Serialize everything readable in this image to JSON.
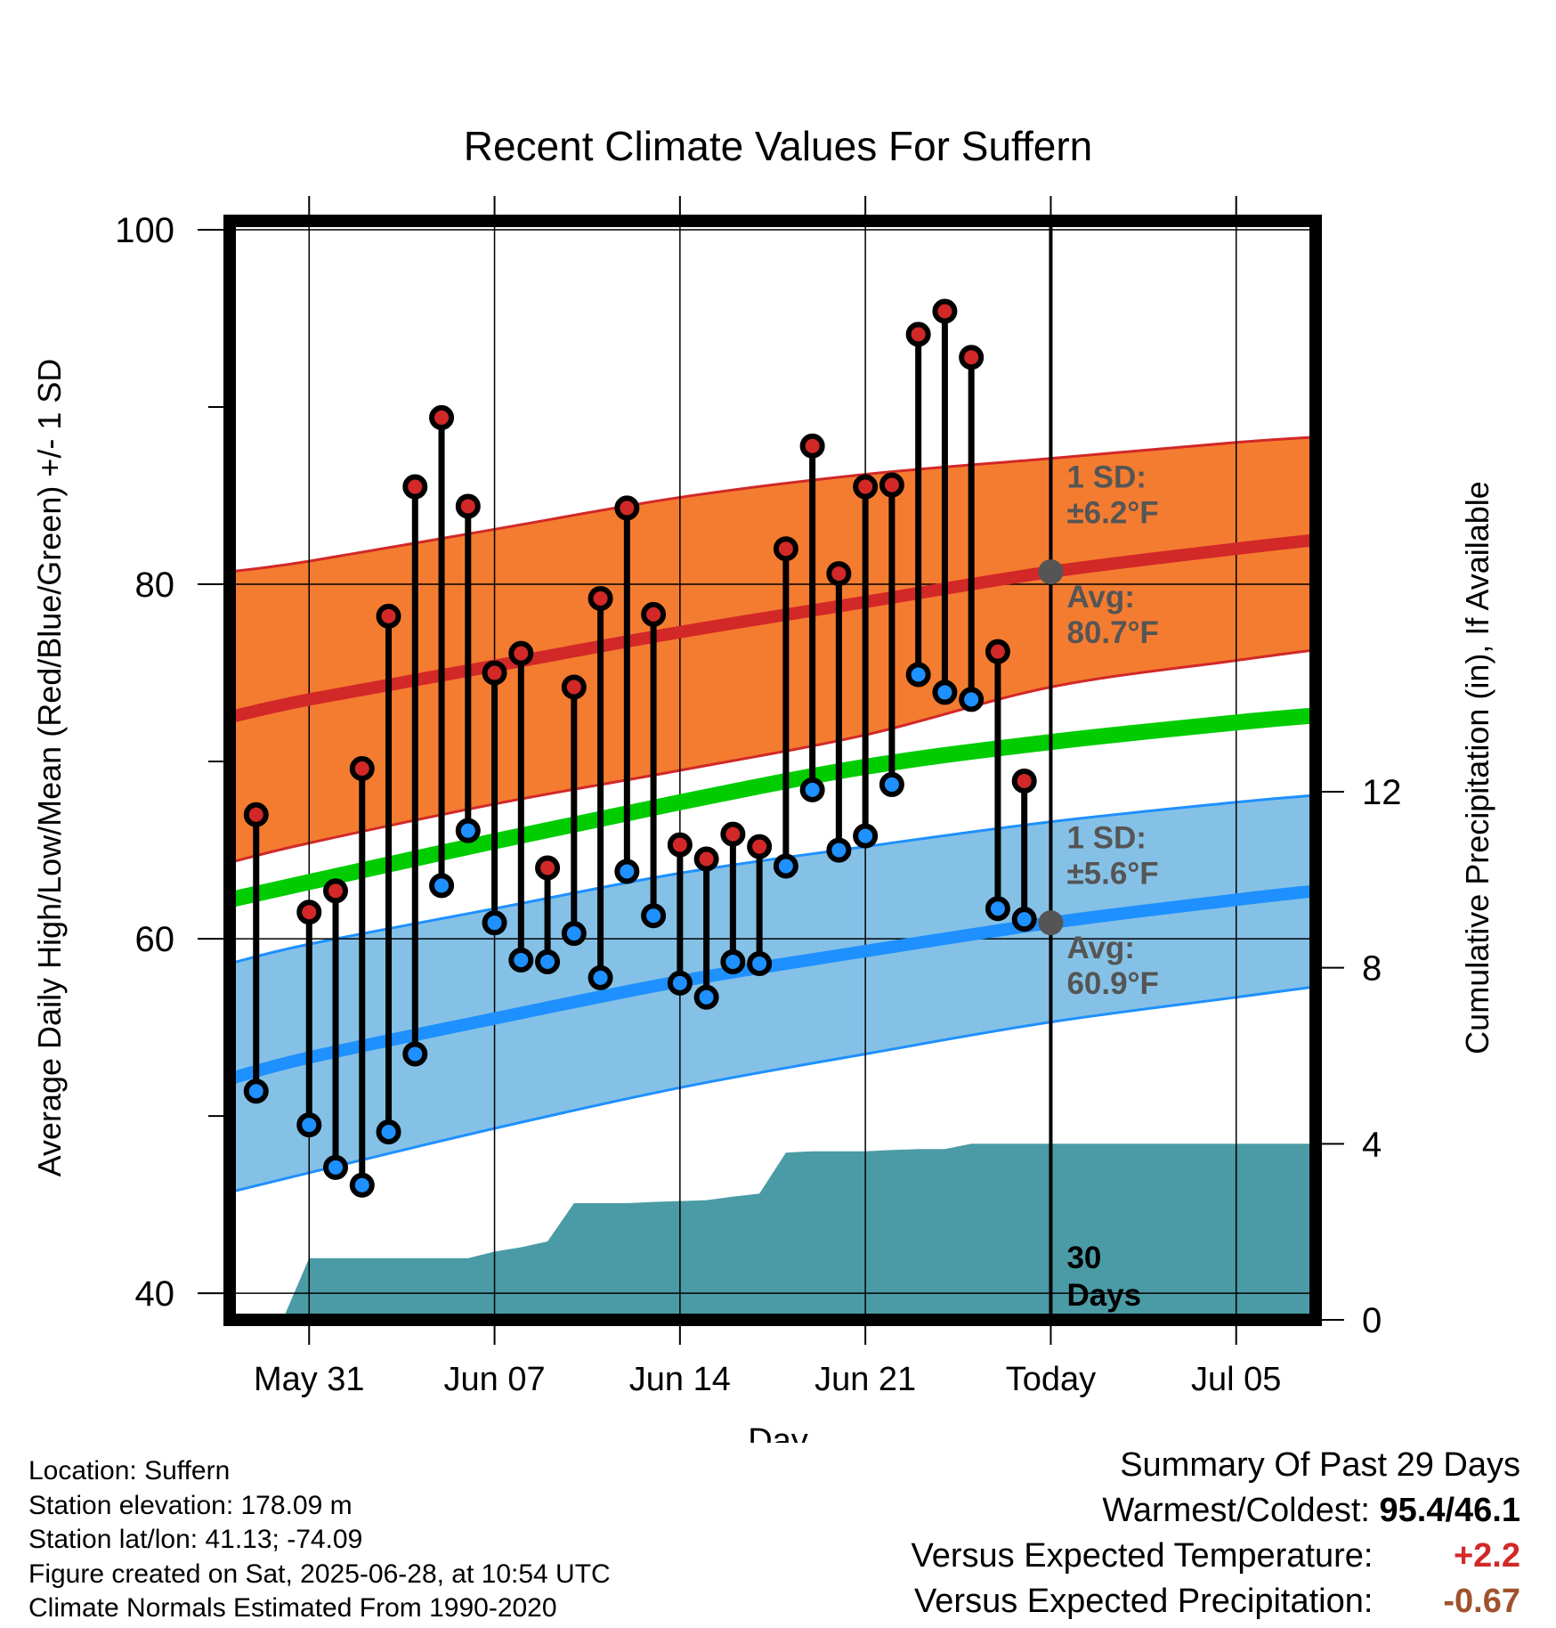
{
  "chart_data": {
    "type": "line",
    "title": "Recent Climate Values For Suffern",
    "xlabel": "Day",
    "ylabel": "Average Daily High/Low/Mean (Red/Blue/Green) +/- 1 SD",
    "ylabel_right": "Cumulative Precipitation (in), If Available",
    "ylim": [
      38.5,
      100.5
    ],
    "yticks": [
      40,
      60,
      80,
      100
    ],
    "ylim_right": [
      0,
      12
    ],
    "yticks_right": [
      0,
      4,
      8,
      12
    ],
    "xlim": [
      -3.0,
      38.0
    ],
    "xticks": [
      {
        "day": 0,
        "label": "May 31"
      },
      {
        "day": 7,
        "label": "Jun 07"
      },
      {
        "day": 14,
        "label": "Jun 14"
      },
      {
        "day": 21,
        "label": "Jun 21"
      },
      {
        "day": 28,
        "label": "Today"
      },
      {
        "day": 35,
        "label": "Jul 05"
      }
    ],
    "today_day": 28,
    "normals": {
      "days": [
        -3,
        0,
        7,
        14,
        21,
        28,
        35,
        38
      ],
      "high_mean": [
        72.5,
        73.5,
        75.4,
        77.3,
        79.0,
        80.7,
        82.0,
        82.5
      ],
      "high_sd_upper": [
        80.7,
        81.3,
        83.1,
        84.9,
        86.2,
        87.1,
        88.0,
        88.3
      ],
      "high_sd_lower": [
        64.3,
        65.4,
        67.6,
        69.5,
        71.5,
        74.2,
        75.7,
        76.3
      ],
      "mean": [
        62.2,
        63.2,
        65.5,
        67.7,
        69.7,
        71.1,
        72.2,
        72.6
      ],
      "low_mean": [
        52.1,
        53.3,
        55.5,
        57.6,
        59.3,
        60.9,
        62.2,
        62.7
      ],
      "low_sd_upper": [
        58.6,
        59.7,
        61.7,
        63.7,
        65.2,
        66.6,
        67.7,
        68.1
      ],
      "low_sd_lower": [
        45.7,
        46.8,
        49.3,
        51.6,
        53.5,
        55.3,
        56.7,
        57.3
      ]
    },
    "observations": [
      {
        "day": -2,
        "high": 67.0,
        "low": 51.4
      },
      {
        "day": 0,
        "high": 61.5,
        "low": 49.5
      },
      {
        "day": 1,
        "high": 62.7,
        "low": 47.1
      },
      {
        "day": 2,
        "high": 69.6,
        "low": 46.1
      },
      {
        "day": 3,
        "high": 78.2,
        "low": 49.1
      },
      {
        "day": 4,
        "high": 85.5,
        "low": 53.5
      },
      {
        "day": 5,
        "high": 89.4,
        "low": 63.0
      },
      {
        "day": 6,
        "high": 84.4,
        "low": 66.1
      },
      {
        "day": 7,
        "high": 75.0,
        "low": 60.9
      },
      {
        "day": 8,
        "high": 76.1,
        "low": 58.8
      },
      {
        "day": 9,
        "high": 64.0,
        "low": 58.7
      },
      {
        "day": 10,
        "high": 74.2,
        "low": 60.3
      },
      {
        "day": 11,
        "high": 79.2,
        "low": 57.8
      },
      {
        "day": 12,
        "high": 84.3,
        "low": 63.8
      },
      {
        "day": 13,
        "high": 78.3,
        "low": 61.3
      },
      {
        "day": 14,
        "high": 65.3,
        "low": 57.5
      },
      {
        "day": 15,
        "high": 64.5,
        "low": 56.7
      },
      {
        "day": 16,
        "high": 65.9,
        "low": 58.7
      },
      {
        "day": 17,
        "high": 65.2,
        "low": 58.6
      },
      {
        "day": 18,
        "high": 82.0,
        "low": 64.1
      },
      {
        "day": 19,
        "high": 87.8,
        "low": 68.4
      },
      {
        "day": 20,
        "high": 80.6,
        "low": 65.0
      },
      {
        "day": 21,
        "high": 85.5,
        "low": 65.8
      },
      {
        "day": 22,
        "high": 85.6,
        "low": 68.7
      },
      {
        "day": 23,
        "high": 94.1,
        "low": 74.9
      },
      {
        "day": 24,
        "high": 95.4,
        "low": 73.9
      },
      {
        "day": 25,
        "high": 92.8,
        "low": 73.5
      },
      {
        "day": 26,
        "high": 76.2,
        "low": 61.7
      },
      {
        "day": 27,
        "high": 68.9,
        "low": 61.1
      }
    ],
    "precipitation": {
      "days": [
        -3,
        -1,
        0,
        1,
        2,
        3,
        4,
        5,
        6,
        7,
        8,
        9,
        10,
        11,
        12,
        13,
        14,
        15,
        16,
        17,
        18,
        19,
        20,
        21,
        22,
        23,
        24,
        25,
        26,
        27,
        28,
        38
      ],
      "values": [
        0,
        0,
        1.4,
        1.4,
        1.4,
        1.4,
        1.4,
        1.4,
        1.4,
        1.55,
        1.65,
        1.78,
        2.65,
        2.65,
        2.65,
        2.68,
        2.7,
        2.72,
        2.8,
        2.87,
        3.8,
        3.83,
        3.83,
        3.83,
        3.86,
        3.88,
        3.88,
        4.0,
        4.0,
        4.0,
        4.0,
        4.0
      ]
    },
    "annotations": [
      {
        "label_top": "1 SD:",
        "label_bottom": "±6.2°F"
      },
      {
        "label_top": "Avg:",
        "label_bottom": "80.7°F"
      },
      {
        "label_top": "1 SD:",
        "label_bottom": "±5.6°F"
      },
      {
        "label_top": "Avg:",
        "label_bottom": "60.9°F"
      },
      {
        "label_top": "30",
        "label_bottom": "Days"
      }
    ],
    "colors": {
      "high_band": "#f47c30",
      "high_line": "#d22828",
      "low_band": "#85c1e6",
      "low_line": "#1e90ff",
      "mean_line": "#00cc00",
      "precip": "#4a9ba5",
      "high_marker": "#d22828",
      "low_marker": "#1e90ff",
      "today_marker": "#555555",
      "annotation_text": "#555555"
    }
  },
  "info": {
    "location": "Location: Suffern",
    "elevation": "Station elevation: 178.09 m",
    "latlon": "Station lat/lon: 41.13; -74.09",
    "created": "Figure created on Sat, 2025-06-28, at 10:54 UTC",
    "normals": "Climate Normals Estimated From 1990-2020"
  },
  "summary": {
    "title": "Summary Of Past 29 Days",
    "warm_cold_label": "Warmest/Coldest:",
    "warm_cold_value": "95.4/46.1",
    "temp_label": "Versus Expected Temperature:",
    "temp_value": "+2.2",
    "temp_color": "#d22828",
    "precip_label": "Versus Expected Precipitation:",
    "precip_value": "-0.67",
    "precip_color": "#a0522d"
  }
}
